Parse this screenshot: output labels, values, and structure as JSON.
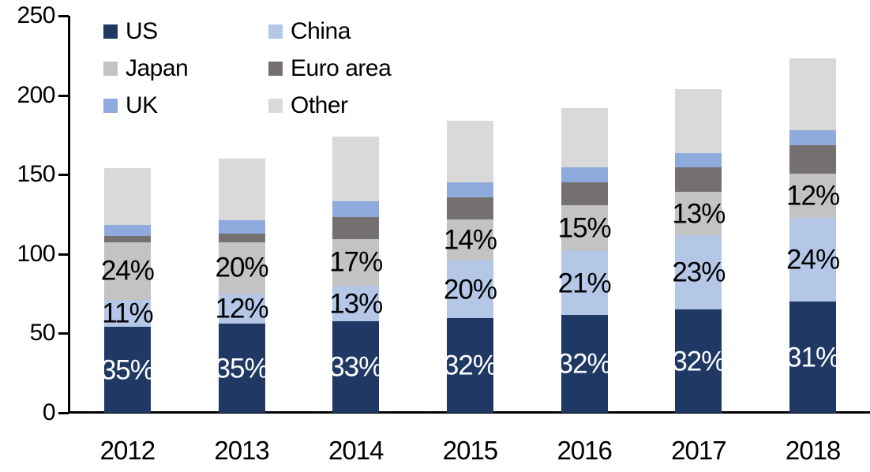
{
  "chart_data": {
    "type": "bar",
    "stacked": true,
    "title": "",
    "categories": [
      "2012",
      "2013",
      "2014",
      "2015",
      "2016",
      "2017",
      "2018"
    ],
    "series": [
      {
        "name": "US",
        "color": "#1F3864",
        "values": [
          54,
          56,
          57.5,
          59.5,
          61.5,
          65,
          70
        ],
        "labels": [
          "35%",
          "35%",
          "33%",
          "32%",
          "32%",
          "32%",
          "31%"
        ],
        "label_color": "#FFFFFF"
      },
      {
        "name": "China",
        "color": "#B4C7E7",
        "values": [
          17,
          19,
          22.5,
          36.5,
          40.5,
          47,
          53
        ],
        "labels": [
          "11%",
          "12%",
          "13%",
          "20%",
          "21%",
          "23%",
          "24%"
        ],
        "label_color": "#000000"
      },
      {
        "name": "Japan",
        "color": "#C3C3C3",
        "values": [
          36.5,
          32.5,
          29.5,
          26,
          28.5,
          27,
          27.5
        ],
        "labels": [
          "24%",
          "20%",
          "17%",
          "14%",
          "15%",
          "13%",
          "12%"
        ],
        "label_color": "#000000"
      },
      {
        "name": "Euro area",
        "color": "#757070",
        "values": [
          4,
          5.5,
          14,
          13.5,
          14.5,
          15.5,
          18
        ],
        "labels": null,
        "label_color": null
      },
      {
        "name": "UK",
        "color": "#8FAADC",
        "values": [
          7,
          8.5,
          9.5,
          9.5,
          9.5,
          9,
          9.5
        ],
        "labels": null,
        "label_color": null
      },
      {
        "name": "Other",
        "color": "#D9D9D9",
        "values": [
          35.5,
          38.5,
          41,
          39,
          37.5,
          40.5,
          45
        ],
        "labels": null,
        "label_color": null
      }
    ],
    "y_axis": {
      "min": 0,
      "max": 250,
      "ticks": [
        0,
        50,
        100,
        150,
        200,
        250
      ]
    },
    "x_axis": {
      "label": ""
    },
    "legend": {
      "position": "top-left",
      "columns": 2,
      "entries": [
        "US",
        "China",
        "Japan",
        "Euro area",
        "UK",
        "Other"
      ]
    },
    "grid": false,
    "axis_color": "#000000",
    "background_color": "#FFFFFF"
  }
}
